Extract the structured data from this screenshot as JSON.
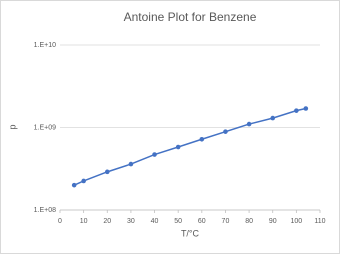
{
  "chart_data": {
    "type": "scatter",
    "title": "Antoine Plot for Benzene",
    "xlabel": "T/°C",
    "ylabel": "p",
    "series": [
      {
        "name": "p",
        "color": "#4472c4",
        "x": [
          6,
          10,
          20,
          30,
          40,
          50,
          60,
          70,
          80,
          90,
          100,
          104
        ],
        "values": [
          200000000,
          225000000,
          290000000,
          360000000,
          470000000,
          580000000,
          720000000,
          890000000,
          1100000000,
          1300000000,
          1600000000,
          1700000000
        ]
      }
    ],
    "xlim": [
      0,
      110
    ],
    "xticks": [
      0,
      10,
      20,
      30,
      40,
      50,
      60,
      70,
      80,
      90,
      100,
      110
    ],
    "ylim": [
      100000000,
      10000000000
    ],
    "ylog": true,
    "yticks": [
      {
        "value": 100000000,
        "label": "1.E+08"
      },
      {
        "value": 1000000000,
        "label": "1.E+09"
      },
      {
        "value": 10000000000,
        "label": "1.E+10"
      }
    ],
    "grid": true,
    "legend": false
  }
}
